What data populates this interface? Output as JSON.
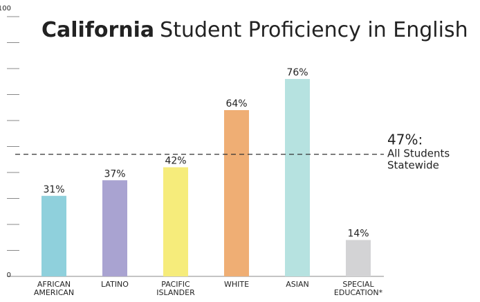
{
  "chart_data": {
    "type": "bar",
    "title_bold": "California",
    "title": "Student Proficiency in English",
    "categories": [
      "AFRICAN AMERICAN",
      "LATINO",
      "PACIFIC ISLANDER",
      "WHITE",
      "ASIAN",
      "SPECIAL EDUCATION*"
    ],
    "values": [
      31,
      37,
      42,
      64,
      76,
      14
    ],
    "value_labels": [
      "31%",
      "37%",
      "42%",
      "64%",
      "76%",
      "14%"
    ],
    "colors": [
      "#8fd0dc",
      "#a9a3d1",
      "#f6ec7b",
      "#efae74",
      "#b6e2e0",
      "#d3d3d5"
    ],
    "ylim": [
      0,
      100
    ],
    "yticks": [
      0,
      10,
      20,
      30,
      40,
      50,
      60,
      70,
      80,
      90,
      100
    ],
    "reference": {
      "value": 47,
      "label": "47%:",
      "text": [
        "All Students",
        "Statewide"
      ]
    }
  }
}
